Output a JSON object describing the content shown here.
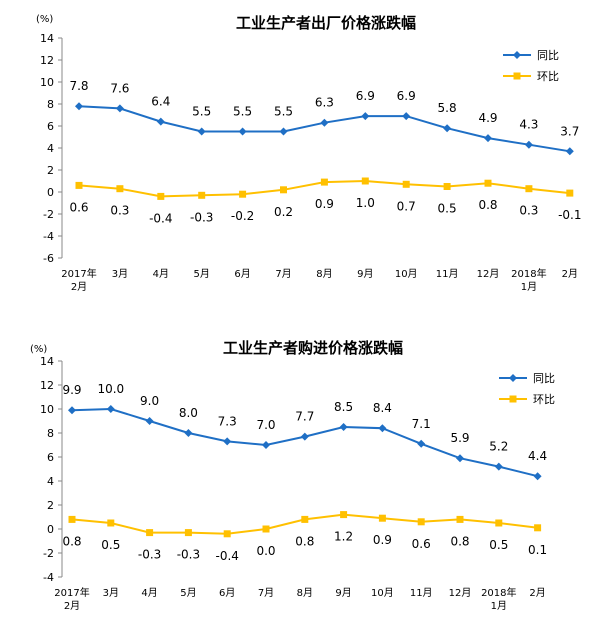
{
  "chart_data": [
    {
      "type": "line",
      "title": "工业生产者出厂价格涨跌幅",
      "unit_label": "(%)",
      "ylim": [
        -6,
        14
      ],
      "yticks": [
        -6,
        -4,
        -2,
        0,
        2,
        4,
        6,
        8,
        10,
        12,
        14
      ],
      "categories": [
        "2017年\n2月",
        "3月",
        "4月",
        "5月",
        "6月",
        "7月",
        "8月",
        "9月",
        "10月",
        "11月",
        "12月",
        "2018年\n1月",
        "2月"
      ],
      "legend_position": "top-right",
      "series": [
        {
          "name": "同比",
          "color": "#1f6fc5",
          "marker": "diamond",
          "values": [
            7.8,
            7.6,
            6.4,
            5.5,
            5.5,
            5.5,
            6.3,
            6.9,
            6.9,
            5.8,
            4.9,
            4.3,
            3.7
          ]
        },
        {
          "name": "环比",
          "color": "#ffc000",
          "marker": "square",
          "values": [
            0.6,
            0.3,
            -0.4,
            -0.3,
            -0.2,
            0.2,
            0.9,
            1.0,
            0.7,
            0.5,
            0.8,
            0.3,
            -0.1
          ]
        }
      ]
    },
    {
      "type": "line",
      "title": "工业生产者购进价格涨跌幅",
      "unit_label": "(%)",
      "ylim": [
        -4,
        14
      ],
      "yticks": [
        -4,
        -2,
        0,
        2,
        4,
        6,
        8,
        10,
        12,
        14
      ],
      "categories": [
        "2017年\n2月",
        "3月",
        "4月",
        "5月",
        "6月",
        "7月",
        "8月",
        "9月",
        "10月",
        "11月",
        "12月",
        "2018年\n1月",
        "2月"
      ],
      "legend_position": "top-right",
      "series": [
        {
          "name": "同比",
          "color": "#1f6fc5",
          "marker": "diamond",
          "values": [
            9.9,
            10.0,
            9.0,
            8.0,
            7.3,
            7.0,
            7.7,
            8.5,
            8.4,
            7.1,
            5.9,
            5.2,
            4.4
          ]
        },
        {
          "name": "环比",
          "color": "#ffc000",
          "marker": "square",
          "values": [
            0.8,
            0.5,
            -0.3,
            -0.3,
            -0.4,
            0.0,
            0.8,
            1.2,
            0.9,
            0.6,
            0.8,
            0.5,
            0.1
          ]
        }
      ]
    }
  ]
}
